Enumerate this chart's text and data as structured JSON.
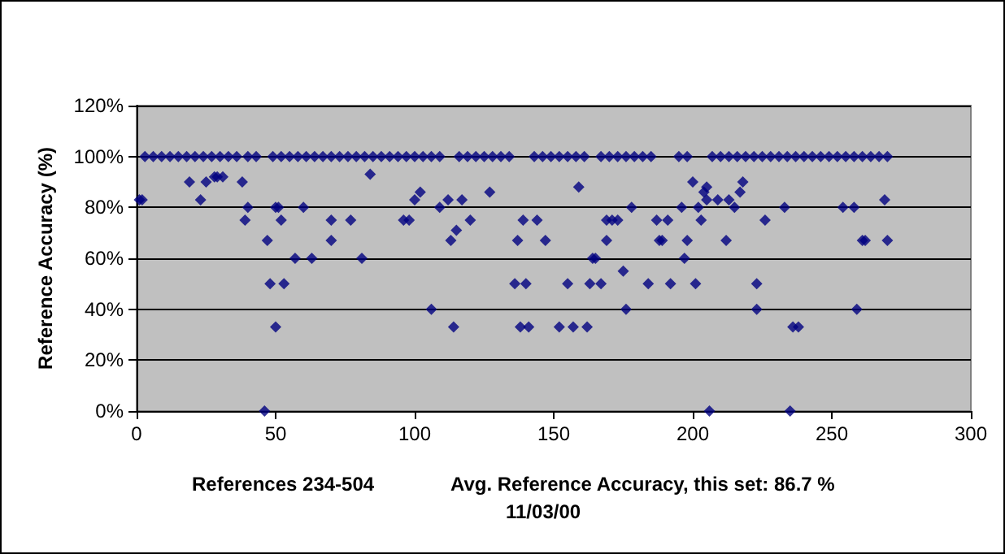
{
  "chart_data": {
    "type": "scatter",
    "ylabel": "Reference Accuracy (%)",
    "xlabel": "References 234-504",
    "annotations": [
      "Avg. Reference Accuracy, this set: 86.7 %",
      "11/03/00"
    ],
    "xlim": [
      0,
      300
    ],
    "xticks": [
      0,
      50,
      100,
      150,
      200,
      250,
      300
    ],
    "ylim": [
      0,
      120
    ],
    "yticks": [
      {
        "value": 0,
        "label": "0%"
      },
      {
        "value": 20,
        "label": "20%"
      },
      {
        "value": 40,
        "label": "40%"
      },
      {
        "value": 60,
        "label": "60%"
      },
      {
        "value": 80,
        "label": "80%"
      },
      {
        "value": 100,
        "label": "100%"
      },
      {
        "value": 120,
        "label": "120%"
      }
    ],
    "grid": "y",
    "marker": "diamond",
    "series": [
      {
        "color": "#000080",
        "x": [
          1,
          2,
          19,
          23,
          25,
          28,
          29,
          31,
          38,
          39,
          40,
          46,
          47,
          48,
          50,
          51,
          50,
          52,
          53,
          57,
          60,
          63,
          70,
          70,
          77,
          81,
          84,
          96,
          98,
          100,
          102,
          106,
          109,
          112,
          113,
          114,
          115,
          117,
          120,
          127,
          136,
          140,
          137,
          138,
          141,
          139,
          144,
          147,
          152,
          155,
          157,
          162,
          159,
          163,
          167,
          164,
          165,
          169,
          169,
          171,
          173,
          175,
          176,
          178,
          184,
          187,
          191,
          188,
          189,
          192,
          196,
          197,
          198,
          200,
          201,
          202,
          203,
          204,
          205,
          205,
          206,
          209,
          213,
          212,
          215,
          217,
          218,
          223,
          223,
          226,
          233,
          235,
          236,
          238,
          254,
          258,
          259,
          261,
          262,
          269,
          270,
          3,
          6,
          9,
          12,
          15,
          18,
          21,
          24,
          27,
          30,
          33,
          36,
          40,
          43,
          49,
          52,
          55,
          58,
          61,
          64,
          67,
          70,
          73,
          76,
          79,
          82,
          85,
          88,
          91,
          94,
          97,
          100,
          103,
          106,
          109,
          116,
          119,
          122,
          125,
          128,
          131,
          134,
          143,
          146,
          149,
          152,
          155,
          158,
          161,
          167,
          170,
          173,
          176,
          179,
          182,
          185,
          195,
          198,
          207,
          210,
          213,
          216,
          219,
          222,
          225,
          228,
          231,
          234,
          237,
          240,
          243,
          246,
          249,
          252,
          255,
          258,
          261,
          264,
          267,
          270
        ],
        "values": [
          83,
          83,
          90,
          83,
          90,
          92,
          92,
          92,
          90,
          75,
          80,
          0,
          67,
          50,
          80,
          80,
          33,
          75,
          50,
          60,
          80,
          60,
          75,
          67,
          75,
          60,
          93,
          75,
          75,
          83,
          86,
          40,
          80,
          83,
          67,
          33,
          71,
          83,
          75,
          86,
          50,
          50,
          67,
          33,
          33,
          75,
          75,
          67,
          33,
          50,
          33,
          33,
          88,
          50,
          50,
          60,
          60,
          67,
          75,
          75,
          75,
          55,
          40,
          80,
          50,
          75,
          75,
          67,
          67,
          50,
          80,
          60,
          67,
          90,
          50,
          80,
          75,
          86,
          88,
          83,
          0,
          83,
          83,
          67,
          80,
          86,
          90,
          40,
          50,
          75,
          80,
          0,
          33,
          33,
          80,
          80,
          40,
          67,
          67,
          83,
          67,
          100,
          100,
          100,
          100,
          100,
          100,
          100,
          100,
          100,
          100,
          100,
          100,
          100,
          100,
          100,
          100,
          100,
          100,
          100,
          100,
          100,
          100,
          100,
          100,
          100,
          100,
          100,
          100,
          100,
          100,
          100,
          100,
          100,
          100,
          100,
          100,
          100,
          100,
          100,
          100,
          100,
          100,
          100,
          100,
          100,
          100,
          100,
          100,
          100,
          100,
          100,
          100,
          100,
          100,
          100,
          100,
          100,
          100,
          100,
          100,
          100,
          100,
          100,
          100,
          100,
          100,
          100,
          100,
          100,
          100,
          100,
          100,
          100,
          100,
          100,
          100,
          100,
          100,
          100,
          100
        ]
      }
    ]
  }
}
